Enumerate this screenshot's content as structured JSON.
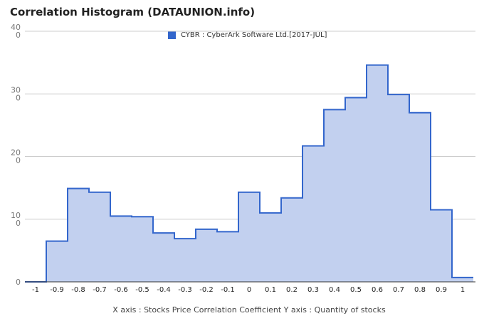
{
  "chart_data": {
    "type": "bar",
    "title": "Correlation Histogram (DATAUNION.info)",
    "legend": "CYBR : CyberArk Software Ltd.[2017-JUL]",
    "caption": "X axis : Stocks Price Correlation Coefficient  Y axis : Quantity of stocks",
    "categories": [
      "-1",
      "-0.9",
      "-0.8",
      "-0.7",
      "-0.6",
      "-0.5",
      "-0.4",
      "-0.3",
      "-0.2",
      "-0.1",
      "0",
      "0.1",
      "0.2",
      "0.3",
      "0.4",
      "0.5",
      "0.6",
      "0.7",
      "0.8",
      "0.9",
      "1"
    ],
    "values": [
      0,
      65,
      149,
      143,
      105,
      104,
      78,
      69,
      84,
      80,
      143,
      110,
      134,
      217,
      275,
      294,
      346,
      299,
      270,
      115,
      7
    ],
    "ylim": [
      0,
      400
    ],
    "yticks": [
      "400",
      "300",
      "200",
      "100",
      "0"
    ],
    "grid": true,
    "legend_position": "top",
    "colors": {
      "line": "#3366cc",
      "fill": "#c2d0ef"
    }
  }
}
